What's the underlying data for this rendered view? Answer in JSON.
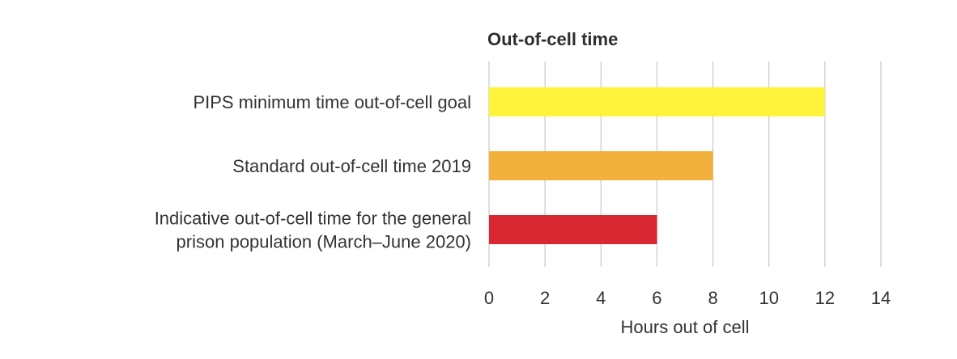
{
  "chart_data": {
    "type": "bar",
    "orientation": "horizontal",
    "title": "Out-of-cell time",
    "xlabel": "Hours out of cell",
    "ylabel": "",
    "xlim": [
      0,
      14
    ],
    "xticks": [
      "0",
      "2",
      "4",
      "6",
      "8",
      "10",
      "12",
      "14"
    ],
    "grid": true,
    "categories": [
      [
        "PIPS minimum time out-of-cell goal"
      ],
      [
        "Standard out-of-cell time 2019"
      ],
      [
        "Indicative out-of-cell time for the general",
        "prison population (March–June 2020)"
      ]
    ],
    "values": [
      12,
      8,
      6
    ],
    "colors": [
      "#fff23a",
      "#f2b13d",
      "#d92832"
    ]
  }
}
